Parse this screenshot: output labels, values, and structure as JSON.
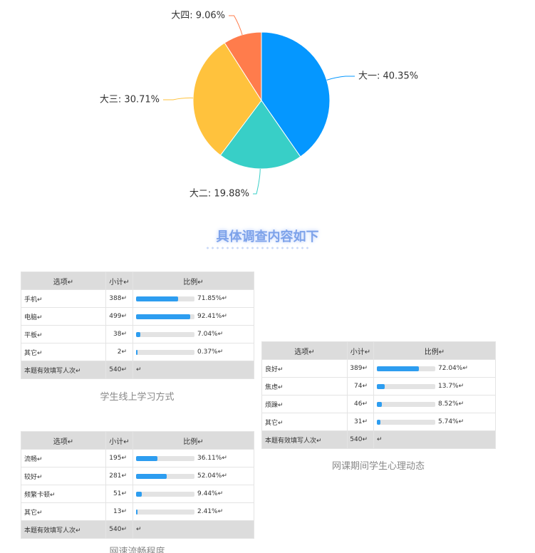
{
  "chart_data": {
    "type": "pie",
    "values": [
      40.35,
      19.88,
      30.71,
      9.06
    ],
    "value_labels": [
      "大一: 40.35%",
      "大二: 19.88%",
      "大三: 30.71%",
      "大四: 9.06%"
    ],
    "colors": [
      "#0597ff",
      "#38cfc7",
      "#ffc23d",
      "#ff7c4c"
    ]
  },
  "heading": "具体调查内容如下",
  "tables": [
    {
      "caption": "学生线上学习方式",
      "header": [
        "选项↵",
        "小计↵",
        "比例↵"
      ],
      "rows": [
        {
          "option": "手机↵",
          "count": "388↵",
          "ratio": {
            "value": 71.85,
            "label": "71.85%↵"
          }
        },
        {
          "option": "电脑↵",
          "count": "499↵",
          "ratio": {
            "value": 92.41,
            "label": "92.41%↵"
          }
        },
        {
          "option": "平板↵",
          "count": "38↵",
          "ratio": {
            "value": 7.04,
            "label": "7.04%↵"
          }
        },
        {
          "option": "其它↵",
          "count": "2↵",
          "ratio": {
            "value": 0.37,
            "label": "0.37%↵"
          }
        }
      ],
      "total": [
        "本题有效填写人次↵",
        "540↵",
        "↵"
      ]
    },
    {
      "caption": "网课期间学生心理动态",
      "header": [
        "选项↵",
        "小计↵",
        "比例↵"
      ],
      "rows": [
        {
          "option": "良好↵",
          "count": "389↵",
          "ratio": {
            "value": 72.04,
            "label": "72.04%↵"
          }
        },
        {
          "option": "焦虑↵",
          "count": "74↵",
          "ratio": {
            "value": 13.7,
            "label": "13.7%↵"
          }
        },
        {
          "option": "烦躁↵",
          "count": "46↵",
          "ratio": {
            "value": 8.52,
            "label": "8.52%↵"
          }
        },
        {
          "option": "其它↵",
          "count": "31↵",
          "ratio": {
            "value": 5.74,
            "label": "5.74%↵"
          }
        }
      ],
      "total": [
        "本题有效填写人次↵",
        "540↵",
        "↵"
      ]
    },
    {
      "caption": "网速流畅程度",
      "header": [
        "选项↵",
        "小计↵",
        "比例↵"
      ],
      "rows": [
        {
          "option": "流畅↵",
          "count": "195↵",
          "ratio": {
            "value": 36.11,
            "label": "36.11%↵"
          }
        },
        {
          "option": "较好↵",
          "count": "281↵",
          "ratio": {
            "value": 52.04,
            "label": "52.04%↵"
          }
        },
        {
          "option": "频繁卡顿↵",
          "count": "51↵",
          "ratio": {
            "value": 9.44,
            "label": "9.44%↵"
          }
        },
        {
          "option": "其它↵",
          "count": "13↵",
          "ratio": {
            "value": 2.41,
            "label": "2.41%↵"
          }
        }
      ],
      "total": [
        "本题有效填写人次↵",
        "540↵",
        "↵"
      ]
    }
  ]
}
